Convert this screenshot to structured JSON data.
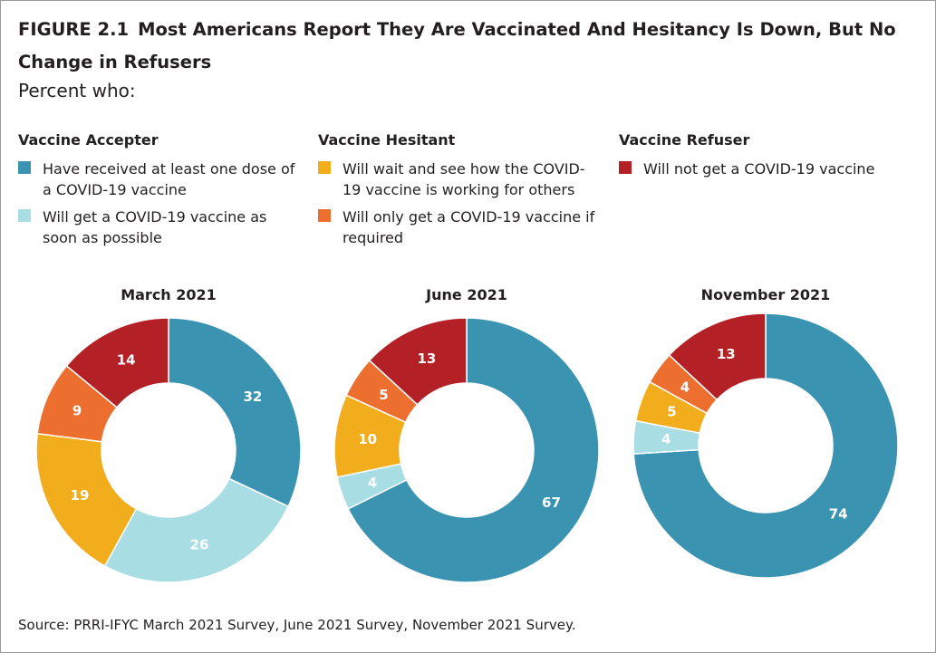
{
  "header": {
    "figure_label": "FIGURE 2.1",
    "title": "Most Americans Report They Are Vaccinated And Hesitancy Is Down, But No Change in Refusers",
    "subtitle": "Percent who:"
  },
  "legend": {
    "groups": [
      {
        "title": "Vaccine Accepter",
        "items": [
          {
            "label": "Have received at least one dose of a COVID-19 vaccine",
            "color": "#3a93b0"
          },
          {
            "label": "Will get a COVID-19 vaccine as soon as possible",
            "color": "#a8dde4"
          }
        ]
      },
      {
        "title": "Vaccine Hesitant",
        "items": [
          {
            "label": "Will wait and see how the COVID-19 vaccine is working for others",
            "color": "#f2ad1d"
          },
          {
            "label": "Will only get a COVID-19 vaccine if required",
            "color": "#ed6f2f"
          }
        ]
      },
      {
        "title": "Vaccine Refuser",
        "items": [
          {
            "label": "Will not get a COVID-19 vaccine",
            "color": "#b32025"
          }
        ]
      }
    ]
  },
  "chart_data": [
    {
      "type": "pie",
      "title": "March 2021",
      "slices": [
        {
          "category": "Have received at least one dose of a COVID-19 vaccine",
          "value": 32,
          "color": "#3a93b0"
        },
        {
          "category": "Will get a COVID-19 vaccine as soon as possible",
          "value": 26,
          "color": "#a8dde4"
        },
        {
          "category": "Will wait and see how the COVID-19 vaccine is working for others",
          "value": 19,
          "color": "#f2ad1d"
        },
        {
          "category": "Will only get a COVID-19 vaccine if required",
          "value": 9,
          "color": "#ed6f2f"
        },
        {
          "category": "Will not get a COVID-19 vaccine",
          "value": 14,
          "color": "#b32025"
        }
      ]
    },
    {
      "type": "pie",
      "title": "June 2021",
      "slices": [
        {
          "category": "Have received at least one dose of a COVID-19 vaccine",
          "value": 67,
          "color": "#3a93b0"
        },
        {
          "category": "Will get a COVID-19 vaccine as soon as possible",
          "value": 4,
          "color": "#a8dde4"
        },
        {
          "category": "Will wait and see how the COVID-19 vaccine is working for others",
          "value": 10,
          "color": "#f2ad1d"
        },
        {
          "category": "Will only get a COVID-19 vaccine if required",
          "value": 5,
          "color": "#ed6f2f"
        },
        {
          "category": "Will not get a COVID-19 vaccine",
          "value": 13,
          "color": "#b32025"
        }
      ]
    },
    {
      "type": "pie",
      "title": "November 2021",
      "slices": [
        {
          "category": "Have received at least one dose of a COVID-19 vaccine",
          "value": 74,
          "color": "#3a93b0"
        },
        {
          "category": "Will get a COVID-19 vaccine as soon as possible",
          "value": 4,
          "color": "#a8dde4"
        },
        {
          "category": "Will wait and see how the COVID-19 vaccine is working for others",
          "value": 5,
          "color": "#f2ad1d"
        },
        {
          "category": "Will only get a COVID-19 vaccine if required",
          "value": 4,
          "color": "#ed6f2f"
        },
        {
          "category": "Will not get a COVID-19 vaccine",
          "value": 13,
          "color": "#b32025"
        }
      ]
    }
  ],
  "source": "Source: PRRI-IFYC March 2021 Survey, June 2021 Survey, November 2021 Survey."
}
